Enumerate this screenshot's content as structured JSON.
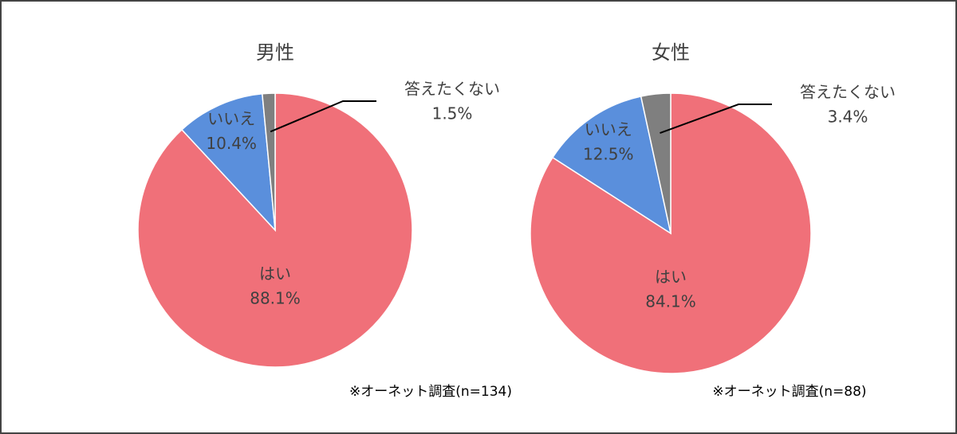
{
  "chart_data": [
    {
      "type": "pie",
      "title": "男性",
      "categories": [
        "はい",
        "いいえ",
        "答えたくない"
      ],
      "values": [
        88.1,
        10.4,
        1.5
      ],
      "value_labels": [
        "88.1%",
        "10.4%",
        "1.5%"
      ],
      "colors": [
        "#f07079",
        "#5a8fdc",
        "#7f7f7f"
      ],
      "annotation": "※オーネット調査(n=134)"
    },
    {
      "type": "pie",
      "title": "女性",
      "categories": [
        "はい",
        "いいえ",
        "答えたくない"
      ],
      "values": [
        84.1,
        12.5,
        3.4
      ],
      "value_labels": [
        "84.1%",
        "12.5%",
        "3.4%"
      ],
      "colors": [
        "#f07079",
        "#5a8fdc",
        "#7f7f7f"
      ],
      "annotation": "※オーネット調査(n=88)"
    }
  ]
}
